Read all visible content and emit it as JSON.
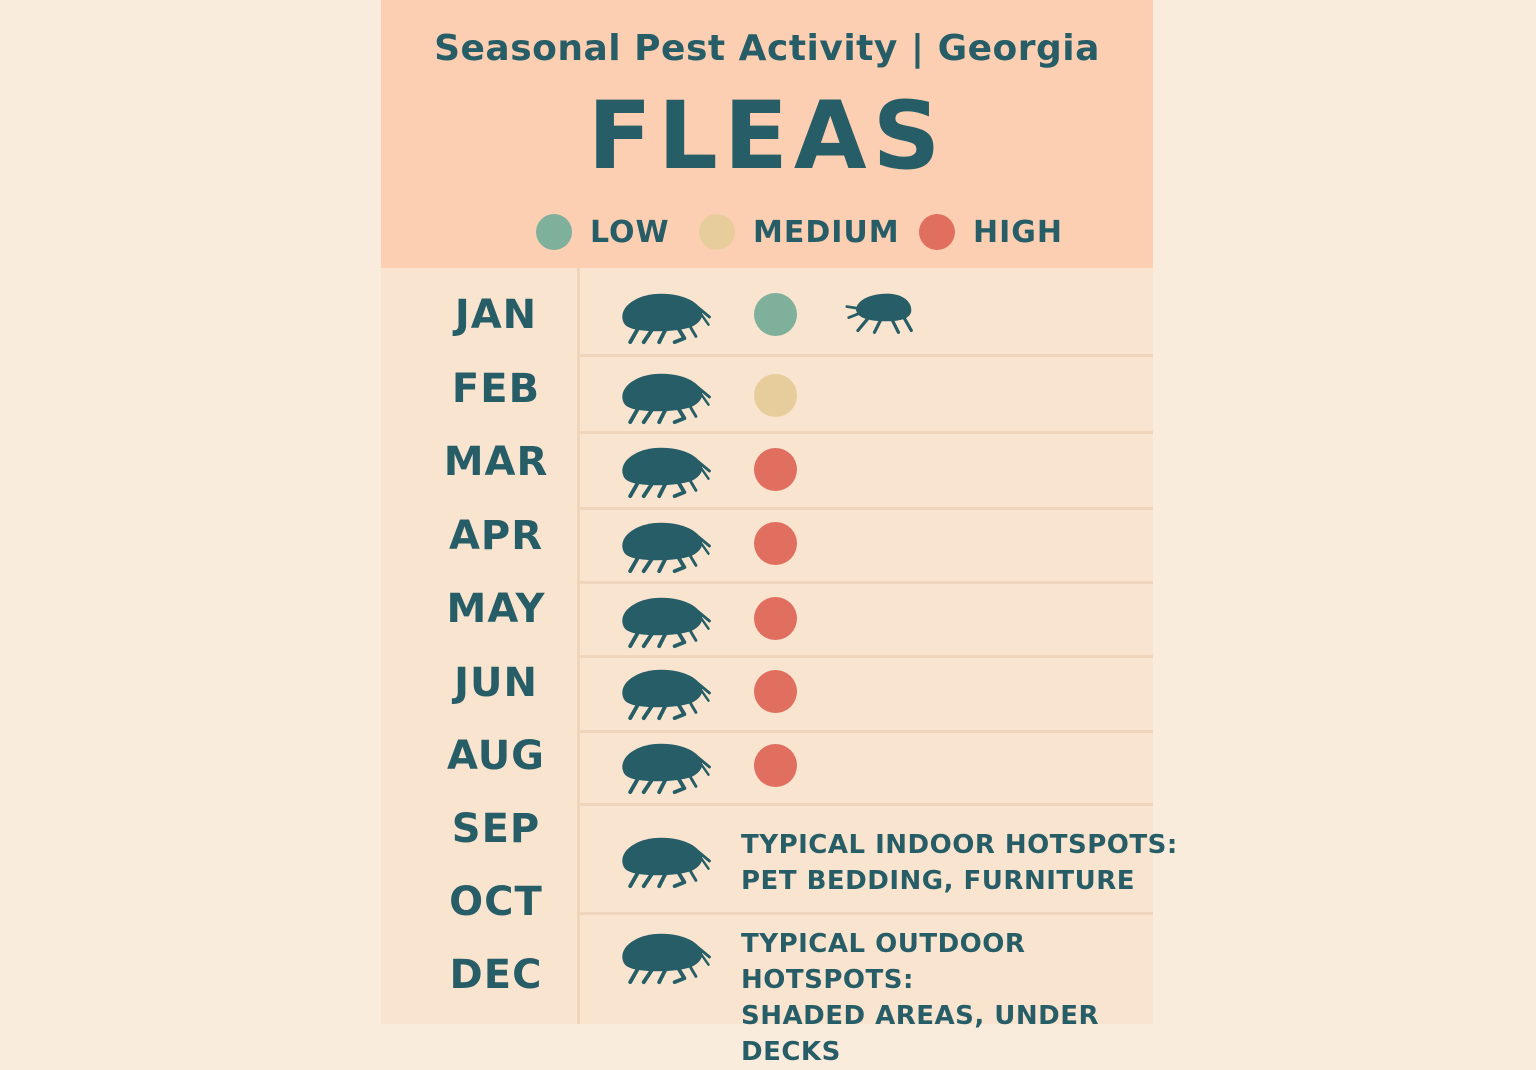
{
  "header": {
    "subtitle": "Seasonal Pest Activity | Georgia",
    "title": "FLEAS"
  },
  "legend": [
    {
      "label": "LOW",
      "color": "#7fb09c"
    },
    {
      "label": "MEDIUM",
      "color": "#e8cd9c"
    },
    {
      "label": "HIGH",
      "color": "#e06f5f"
    }
  ],
  "months": [
    {
      "label": "JAN",
      "level": "low"
    },
    {
      "label": "FEB",
      "level": "medium"
    },
    {
      "label": "MAR",
      "level": "high"
    },
    {
      "label": "APR",
      "level": "high"
    },
    {
      "label": "MAY",
      "level": "high"
    },
    {
      "label": "JUN",
      "level": "high"
    },
    {
      "label": "AUG",
      "level": "high"
    },
    {
      "label": "SEP",
      "level": ""
    },
    {
      "label": "OCT",
      "level": ""
    },
    {
      "label": "DEC",
      "level": ""
    }
  ],
  "notes": {
    "indoor_line1": "TYPICAL INDOOR HOTSPOTS:",
    "indoor_line2": "PET BEDDING, FURNITURE",
    "outdoor_line1": "TYPICAL OUTDOOR HOTSPOTS:",
    "outdoor_line2": "SHADED AREAS, UNDER DECKS"
  },
  "icons": {
    "bug": "flea-icon",
    "dot": "activity-dot"
  },
  "colors": {
    "primary_text": "#275d66",
    "header_bg": "#fccfb3",
    "panel_bg": "#f8e4cf",
    "page_bg": "#f9ecdd"
  }
}
